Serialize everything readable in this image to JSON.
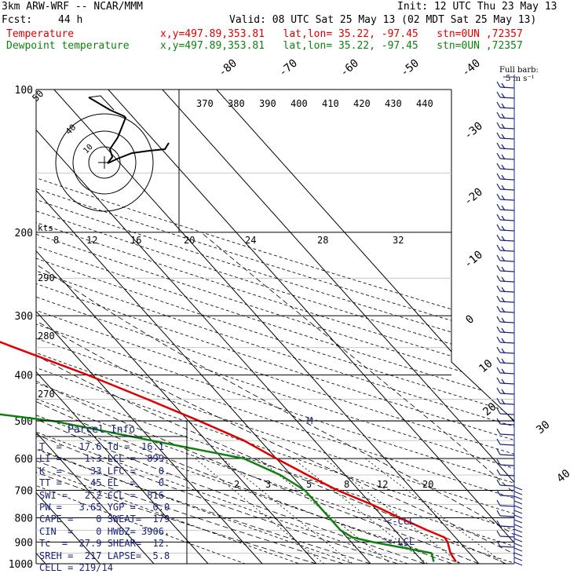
{
  "header": {
    "model": "3km ARW-WRF -- NCAR/MMM",
    "init": "Init: 12 UTC Thu 23 May 13",
    "fcst_label": "Fcst:",
    "fcst_value": "44 h",
    "valid": "Valid: 08 UTC Sat 25 May 13 (02 MDT Sat 25 May 13)",
    "temp_label": "Temperature",
    "temp_info": "x,y=497.89,353.81   lat,lon= 35.22, -97.45   stn=0UN ,72357",
    "dew_label": "Dewpoint temperature",
    "dew_info": "x,y=497.89,353.81   lat,lon= 35.22, -97.45   stn=0UN ,72357"
  },
  "colors": {
    "temperature": "#e00000",
    "dewpoint": "#108010",
    "parcel_panel": "#1a237e",
    "wind_barbs": "#1a237e"
  },
  "chart_data": {
    "type": "line",
    "diagram": "skew-T log-P",
    "y_axis": {
      "label": "pressure (hPa)",
      "scale": "log",
      "ticks": [
        100,
        200,
        300,
        400,
        500,
        600,
        700,
        800,
        900,
        1000
      ]
    },
    "series": [
      {
        "name": "Temperature",
        "points": [
          [
            100,
            -54
          ],
          [
            130,
            -60
          ],
          [
            160,
            -66
          ],
          [
            180,
            -68
          ],
          [
            200,
            -65
          ],
          [
            250,
            -51
          ],
          [
            300,
            -40
          ],
          [
            350,
            -30
          ],
          [
            400,
            -21
          ],
          [
            450,
            -14
          ],
          [
            500,
            -8
          ],
          [
            550,
            -3
          ],
          [
            600,
            0
          ],
          [
            650,
            3
          ],
          [
            700,
            6
          ],
          [
            750,
            10
          ],
          [
            800,
            13
          ],
          [
            850,
            16
          ],
          [
            880,
            18
          ],
          [
            900,
            17.8
          ],
          [
            950,
            16.5
          ],
          [
            990,
            16.1
          ]
        ]
      },
      {
        "name": "Dewpoint temperature",
        "points": [
          [
            100,
            -80
          ],
          [
            130,
            -82
          ],
          [
            160,
            -83
          ],
          [
            180,
            -84
          ],
          [
            200,
            -82
          ],
          [
            250,
            -66
          ],
          [
            300,
            -62
          ],
          [
            350,
            -58
          ],
          [
            400,
            -58
          ],
          [
            430,
            -62
          ],
          [
            450,
            -58
          ],
          [
            480,
            -46
          ],
          [
            500,
            -35
          ],
          [
            550,
            -20
          ],
          [
            600,
            -6
          ],
          [
            650,
            -2
          ],
          [
            700,
            0
          ],
          [
            800,
            0
          ],
          [
            850,
            0
          ],
          [
            880,
            1
          ],
          [
            900,
            4
          ],
          [
            950,
            13
          ],
          [
            990,
            12
          ]
        ]
      }
    ],
    "isotherm_labels": [
      "-80",
      "-70",
      "-60",
      "-50",
      "-40",
      "-30",
      "-20",
      "-10",
      "0",
      "10",
      "20",
      "30",
      "40"
    ],
    "theta_labels": [
      "370",
      "380",
      "390",
      "400",
      "410",
      "420",
      "430",
      "440"
    ],
    "wind_scale_labels": [
      "8",
      "12",
      "16",
      "20",
      "24",
      "28",
      "32"
    ],
    "theta_axis_labels": [
      "290",
      "280",
      "270"
    ],
    "mixing_ratio_labels": [
      "2",
      "3",
      "5",
      "8",
      "12",
      "20"
    ],
    "annotations": [
      "M",
      "<-CCL",
      "< LCL"
    ],
    "hodograph": {
      "units": "kts",
      "ring_labels": [
        "50",
        "40",
        "10"
      ]
    },
    "wind_barb_legend": {
      "title": "Full barb:",
      "value": "5 m s⁻¹"
    }
  },
  "parcel_info": {
    "title": "Parcel Info",
    "lines": [
      "T  =   17.6 Td =  16.1",
      "LI =    1.3 LCL =  899.",
      "K  =     33 LFC =    0.",
      "TT =     45 EL  =    0.",
      "SWI =   2.2 CCL =  816.",
      "PW =   3.65 YGP =   0.0",
      "CAPE =    0 SWEAT=  179",
      "CIN  =    0 HWBZ= 3906.",
      "Tc  =  27.9 SHEAR=  12.",
      "SREH =  217 LAPSE=  5.8",
      "CELL = 219/14"
    ]
  }
}
